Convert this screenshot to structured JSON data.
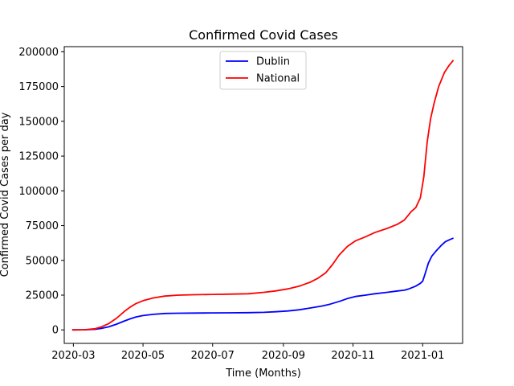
{
  "chart_data": {
    "type": "line",
    "title": "Confirmed Covid Cases",
    "xlabel": "Time (Months)",
    "ylabel": "Confirmed Covid Cases per day",
    "x_range": [
      "2020-02-22",
      "2021-02-05"
    ],
    "ylim": [
      -9700,
      203700
    ],
    "x_ticks": [
      {
        "date": "2020-03-01",
        "label": "2020-03"
      },
      {
        "date": "2020-05-01",
        "label": "2020-05"
      },
      {
        "date": "2020-07-01",
        "label": "2020-07"
      },
      {
        "date": "2020-09-01",
        "label": "2020-09"
      },
      {
        "date": "2020-11-01",
        "label": "2020-11"
      },
      {
        "date": "2021-01-01",
        "label": "2021-01"
      }
    ],
    "y_ticks": [
      {
        "value": 0,
        "label": "0"
      },
      {
        "value": 25000,
        "label": "25000"
      },
      {
        "value": 50000,
        "label": "50000"
      },
      {
        "value": 75000,
        "label": "75000"
      },
      {
        "value": 100000,
        "label": "100000"
      },
      {
        "value": 125000,
        "label": "125000"
      },
      {
        "value": 150000,
        "label": "150000"
      },
      {
        "value": 175000,
        "label": "175000"
      },
      {
        "value": 200000,
        "label": "200000"
      }
    ],
    "grid": false,
    "legend_position": "top-center",
    "series": [
      {
        "name": "Dublin",
        "color": "#0000ff",
        "points": [
          [
            "2020-02-29",
            0
          ],
          [
            "2020-03-10",
            50
          ],
          [
            "2020-03-20",
            400
          ],
          [
            "2020-03-25",
            1000
          ],
          [
            "2020-04-01",
            2200
          ],
          [
            "2020-04-08",
            4200
          ],
          [
            "2020-04-15",
            6500
          ],
          [
            "2020-04-20",
            8000
          ],
          [
            "2020-04-25",
            9300
          ],
          [
            "2020-05-01",
            10300
          ],
          [
            "2020-05-10",
            11200
          ],
          [
            "2020-05-20",
            11800
          ],
          [
            "2020-06-01",
            12000
          ],
          [
            "2020-06-15",
            12100
          ],
          [
            "2020-07-01",
            12200
          ],
          [
            "2020-07-15",
            12300
          ],
          [
            "2020-08-01",
            12400
          ],
          [
            "2020-08-15",
            12600
          ],
          [
            "2020-08-25",
            13000
          ],
          [
            "2020-09-05",
            13600
          ],
          [
            "2020-09-15",
            14500
          ],
          [
            "2020-09-25",
            15800
          ],
          [
            "2020-10-05",
            17200
          ],
          [
            "2020-10-12",
            18500
          ],
          [
            "2020-10-20",
            20500
          ],
          [
            "2020-10-27",
            22500
          ],
          [
            "2020-11-03",
            24000
          ],
          [
            "2020-11-12",
            25000
          ],
          [
            "2020-11-20",
            26000
          ],
          [
            "2020-12-01",
            27000
          ],
          [
            "2020-12-10",
            28000
          ],
          [
            "2020-12-16",
            28500
          ],
          [
            "2020-12-20",
            29500
          ],
          [
            "2020-12-26",
            31500
          ],
          [
            "2020-12-30",
            33500
          ],
          [
            "2021-01-01",
            35000
          ],
          [
            "2021-01-03",
            40000
          ],
          [
            "2021-01-06",
            48000
          ],
          [
            "2021-01-09",
            53000
          ],
          [
            "2021-01-13",
            57000
          ],
          [
            "2021-01-17",
            60500
          ],
          [
            "2021-01-21",
            63500
          ],
          [
            "2021-01-25",
            65000
          ],
          [
            "2021-01-28",
            66000
          ]
        ]
      },
      {
        "name": "National",
        "color": "#ff0000",
        "points": [
          [
            "2020-02-29",
            0
          ],
          [
            "2020-03-10",
            100
          ],
          [
            "2020-03-20",
            800
          ],
          [
            "2020-03-25",
            2000
          ],
          [
            "2020-04-01",
            4500
          ],
          [
            "2020-04-08",
            8500
          ],
          [
            "2020-04-15",
            13500
          ],
          [
            "2020-04-20",
            16500
          ],
          [
            "2020-04-25",
            19000
          ],
          [
            "2020-05-01",
            21000
          ],
          [
            "2020-05-10",
            23000
          ],
          [
            "2020-05-20",
            24300
          ],
          [
            "2020-06-01",
            25000
          ],
          [
            "2020-06-15",
            25300
          ],
          [
            "2020-07-01",
            25500
          ],
          [
            "2020-07-15",
            25700
          ],
          [
            "2020-08-01",
            26000
          ],
          [
            "2020-08-15",
            27000
          ],
          [
            "2020-08-25",
            28000
          ],
          [
            "2020-09-05",
            29500
          ],
          [
            "2020-09-15",
            31500
          ],
          [
            "2020-09-25",
            34500
          ],
          [
            "2020-10-01",
            37000
          ],
          [
            "2020-10-08",
            41000
          ],
          [
            "2020-10-14",
            47000
          ],
          [
            "2020-10-20",
            54000
          ],
          [
            "2020-10-27",
            60000
          ],
          [
            "2020-11-03",
            64000
          ],
          [
            "2020-11-12",
            67000
          ],
          [
            "2020-11-20",
            70000
          ],
          [
            "2020-12-01",
            73000
          ],
          [
            "2020-12-10",
            76000
          ],
          [
            "2020-12-16",
            79000
          ],
          [
            "2020-12-22",
            85000
          ],
          [
            "2020-12-26",
            88000
          ],
          [
            "2020-12-30",
            95000
          ],
          [
            "2021-01-02",
            110000
          ],
          [
            "2021-01-05",
            135000
          ],
          [
            "2021-01-08",
            152000
          ],
          [
            "2021-01-11",
            163000
          ],
          [
            "2021-01-15",
            175000
          ],
          [
            "2021-01-20",
            185000
          ],
          [
            "2021-01-24",
            190000
          ],
          [
            "2021-01-28",
            194000
          ]
        ]
      }
    ]
  }
}
